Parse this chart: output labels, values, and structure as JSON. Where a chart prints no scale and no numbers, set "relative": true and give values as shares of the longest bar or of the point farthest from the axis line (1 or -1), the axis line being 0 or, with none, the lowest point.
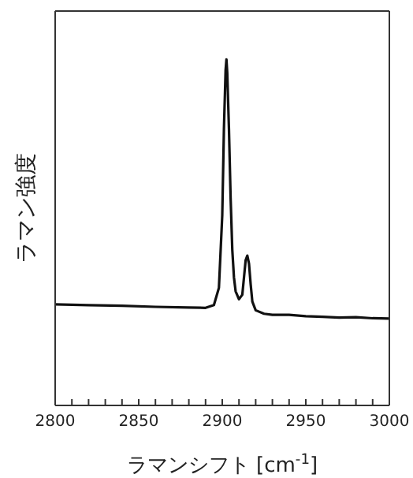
{
  "chart_data": {
    "type": "line",
    "relative": true,
    "xlabel": "ラマンシフト [cm$^{-1}$]",
    "ylabel": "ラマン強度",
    "xlim": [
      2800,
      3000
    ],
    "xticks": [
      2800,
      {
        "value": 2810,
        "label": null
      },
      {
        "value": 2820,
        "label": null
      },
      {
        "value": 2830,
        "label": null
      },
      {
        "value": 2840,
        "label": null
      },
      2850,
      {
        "value": 2860,
        "label": null
      },
      {
        "value": 2870,
        "label": null
      },
      {
        "value": 2880,
        "label": null
      },
      {
        "value": 2890,
        "label": null
      },
      2900,
      {
        "value": 2910,
        "label": null
      },
      {
        "value": 2920,
        "label": null
      },
      {
        "value": 2930,
        "label": null
      },
      {
        "value": 2940,
        "label": null
      },
      2950,
      {
        "value": 2960,
        "label": null
      },
      {
        "value": 2970,
        "label": null
      },
      {
        "value": 2980,
        "label": null
      },
      {
        "value": 2990,
        "label": null
      },
      3000
    ],
    "x": [
      2800,
      2820,
      2840,
      2860,
      2880,
      2890,
      2895,
      2898,
      2900,
      2901,
      2902,
      2902.5,
      2903,
      2904,
      2905,
      2906,
      2907,
      2908,
      2910,
      2912,
      2913,
      2914,
      2915,
      2916,
      2917,
      2918,
      2920,
      2925,
      2930,
      2940,
      2950,
      2960,
      2970,
      2980,
      2990,
      3000
    ],
    "series": [
      {
        "color": "#111111",
        "values": [
          0.292,
          0.29,
          0.288,
          0.285,
          0.283,
          0.282,
          0.29,
          0.34,
          0.55,
          0.8,
          0.97,
          1,
          0.96,
          0.8,
          0.6,
          0.45,
          0.37,
          0.33,
          0.307,
          0.32,
          0.37,
          0.42,
          0.433,
          0.41,
          0.35,
          0.3,
          0.275,
          0.265,
          0.262,
          0.262,
          0.258,
          0.256,
          0.254,
          0.255,
          0.252,
          0.251
        ]
      }
    ],
    "grid": false,
    "marker": "none",
    "line_style": "solid"
  }
}
